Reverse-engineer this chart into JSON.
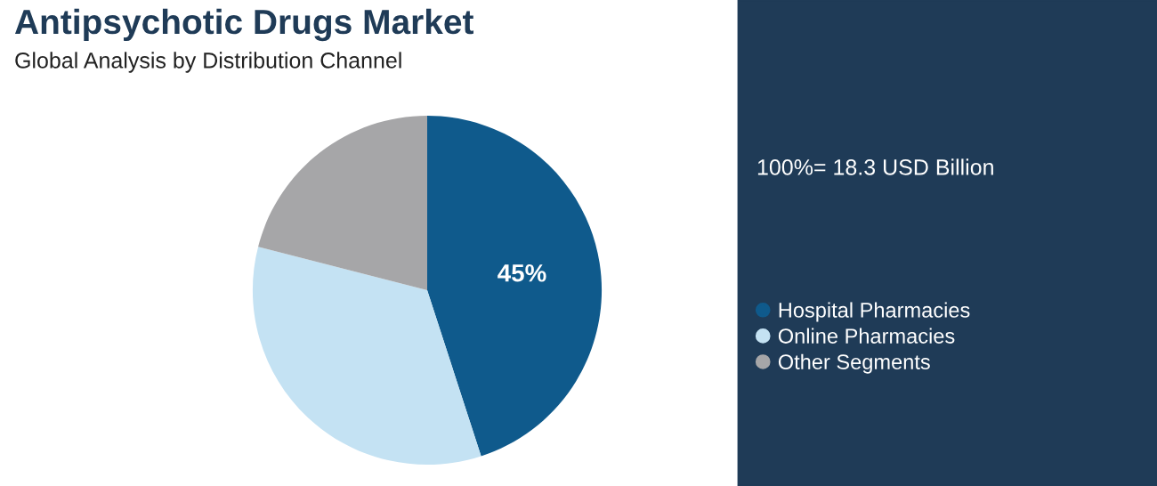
{
  "chart_data": {
    "type": "pie",
    "title": "Antipsychotic Drugs Market",
    "subtitle": "Global Analysis by Distribution Channel",
    "categories": [
      "Hospital Pharmacies",
      "Online Pharmacies",
      "Other Segments"
    ],
    "values": [
      45,
      34,
      21
    ],
    "colors": [
      "#0f5a8c",
      "#c4e2f3",
      "#a6a6a8"
    ],
    "value_labels": [
      "45%",
      null,
      null
    ],
    "annotations": [
      "100%= 18.3 USD Billion"
    ],
    "legend": "right"
  }
}
